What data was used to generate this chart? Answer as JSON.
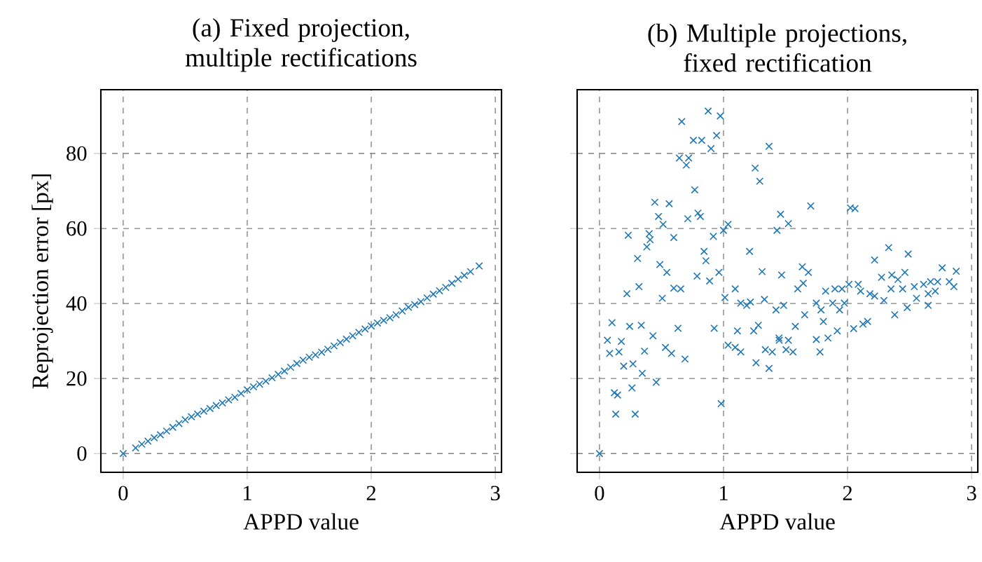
{
  "chart_data": [
    {
      "type": "scatter",
      "title": "(a) Fixed projection, multiple rectifications",
      "xlabel": "APPD value",
      "ylabel": "Reprojection error [px]",
      "xlim": [
        -0.18,
        3.05
      ],
      "ylim": [
        -5,
        97
      ],
      "xticks": [
        0,
        1,
        2,
        3
      ],
      "yticks": [
        0,
        20,
        40,
        60,
        80
      ],
      "grid": true,
      "marker": "cross",
      "color": "#1f77b4",
      "x": [
        0,
        0.1,
        0.15,
        0.2,
        0.25,
        0.3,
        0.35,
        0.4,
        0.45,
        0.5,
        0.55,
        0.6,
        0.65,
        0.7,
        0.75,
        0.8,
        0.85,
        0.9,
        0.95,
        1.0,
        1.05,
        1.1,
        1.15,
        1.2,
        1.25,
        1.3,
        1.35,
        1.4,
        1.45,
        1.5,
        1.55,
        1.6,
        1.65,
        1.7,
        1.75,
        1.8,
        1.85,
        1.9,
        1.95,
        2.0,
        2.05,
        2.1,
        2.15,
        2.2,
        2.25,
        2.3,
        2.35,
        2.4,
        2.45,
        2.5,
        2.55,
        2.6,
        2.65,
        2.7,
        2.75,
        2.8,
        2.87
      ],
      "values": [
        0,
        1.5,
        2.5,
        3.3,
        4.2,
        5,
        6,
        7,
        8,
        9,
        9.8,
        10.5,
        11.3,
        12,
        12.8,
        13.5,
        14.3,
        15,
        16,
        17,
        17.8,
        18.5,
        19.3,
        20.2,
        21.1,
        22,
        23,
        24,
        24.9,
        25.7,
        26.3,
        27,
        27.8,
        28.7,
        29.6,
        30.5,
        31.4,
        32.3,
        33.2,
        34,
        34.8,
        35.5,
        36.2,
        37,
        38,
        39,
        39.7,
        40.5,
        41.5,
        42.5,
        43.4,
        44.3,
        45.4,
        46.5,
        47.5,
        48.5,
        50
      ]
    },
    {
      "type": "scatter",
      "title": "(b) Multiple projections, fixed rectification",
      "xlabel": "APPD value",
      "xlim": [
        -0.18,
        3.05
      ],
      "ylim": [
        -5,
        97
      ],
      "xticks": [
        0,
        1,
        2,
        3
      ],
      "yticks": [
        0,
        20,
        40,
        60,
        80
      ],
      "tick_labels": "x",
      "grid": true,
      "marker": "cross",
      "color": "#1f77b4",
      "x": [
        0,
        0.876,
        0.974,
        0.663,
        0.757,
        0.824,
        0.944,
        0.899,
        0.644,
        0.719,
        0.7,
        0.768,
        0.446,
        0.562,
        0.476,
        0.513,
        0.712,
        0.794,
        0.813,
        0.232,
        0.401,
        0.408,
        0.382,
        0.307,
        0.599,
        0.918,
        1.0,
        1.037,
        0.843,
        0.858,
        0.487,
        0.543,
        0.787,
        0.888,
        0.963,
        0.318,
        0.221,
        0.599,
        0.655,
        0.506,
        1.011,
        1.094,
        1.21,
        1.311,
        1.139,
        1.187,
        1.217,
        1.33,
        1.255,
        1.292,
        1.367,
        0.101,
        0.243,
        0.337,
        0.633,
        0.925,
        0.064,
        0.176,
        0.082,
        0.157,
        0.431,
        0.532,
        0.581,
        0.363,
        0.27,
        0.195,
        0.689,
        0.345,
        0.262,
        0.457,
        0.12,
        0.146,
        0.131,
        0.288,
        0.981,
        1.037,
        1.094,
        1.139,
        1.112,
        1.262,
        1.367,
        1.243,
        1.281,
        1.337,
        1.393,
        1.449,
        1.46,
        1.431,
        1.468,
        1.423,
        1.703,
        2.023,
        2.06,
        1.523,
        1.635,
        1.684,
        1.598,
        1.643,
        1.485,
        1.579,
        1.523,
        1.447,
        1.56,
        1.504,
        1.654,
        1.748,
        1.786,
        1.805,
        1.842,
        1.748,
        1.778,
        1.917,
        1.823,
        1.898,
        1.955,
        2.011,
        2.086,
        1.88,
        1.936,
        1.974,
        2.049,
        2.124,
        2.162,
        2.105,
        2.18,
        2.218,
        2.218,
        2.331,
        2.489,
        2.274,
        2.357,
        2.406,
        2.462,
        2.293,
        2.38,
        2.481,
        2.35,
        2.444,
        2.538,
        2.613,
        2.669,
        2.726,
        2.763,
        2.82,
        2.876,
        2.556,
        2.65,
        2.707,
        2.65,
        2.857
      ],
      "values": [
        0,
        91.3,
        90,
        88.5,
        83.5,
        83.5,
        84.8,
        81.3,
        78.8,
        78.8,
        76.9,
        70.3,
        67,
        66.6,
        63.2,
        61.1,
        62.6,
        64.1,
        63.2,
        58.2,
        58.6,
        57,
        55.1,
        52,
        57.6,
        57.9,
        59.5,
        61.1,
        53.9,
        51.4,
        50.4,
        48.3,
        47.3,
        46,
        48.3,
        44.5,
        42.6,
        44.1,
        43.9,
        41.4,
        41.6,
        43.9,
        53.9,
        48.5,
        40.1,
        39.5,
        40.4,
        41.1,
        76.1,
        72.6,
        81.9,
        34.9,
        33.9,
        34.2,
        33.4,
        33.4,
        30.2,
        29.9,
        26.7,
        27.1,
        31.4,
        28.3,
        26.7,
        27.3,
        23.9,
        23.3,
        25.2,
        21.4,
        17.5,
        19,
        16.2,
        15.6,
        10.5,
        10.5,
        13.3,
        28.9,
        28.3,
        27.1,
        32.7,
        24.2,
        22.7,
        32.7,
        34.2,
        27.7,
        27.1,
        30.2,
        63.8,
        59.5,
        47.6,
        38.3,
        66,
        65.5,
        65.3,
        61.3,
        49.8,
        48.3,
        43.9,
        45.4,
        39.5,
        33.9,
        30.2,
        30.8,
        27.1,
        27.7,
        37,
        40.1,
        38.3,
        35.2,
        30.8,
        30.4,
        27.1,
        32.7,
        43.3,
        43.9,
        43.9,
        45.1,
        45.1,
        40.1,
        38.3,
        40.1,
        33.3,
        34.5,
        35.2,
        43.3,
        42.6,
        42,
        51.6,
        54.9,
        53.2,
        47,
        47.6,
        46.4,
        48.3,
        40.8,
        37,
        38.9,
        43.9,
        43.9,
        44.5,
        45.1,
        45.8,
        45.8,
        49.5,
        45.8,
        48.6,
        41.4,
        42.6,
        43.3,
        39.5,
        44.5
      ]
    }
  ]
}
